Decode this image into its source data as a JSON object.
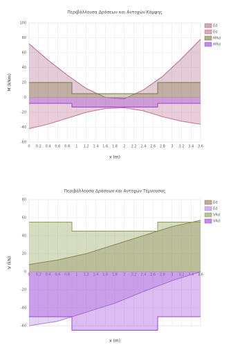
{
  "chart_data": [
    {
      "type": "area",
      "title": "Περιβάλλουσα Δράσεων και Αντοχών Κάμψης",
      "x_label": "x (m)",
      "y_label": "M (kNm)",
      "xlim": [
        0,
        3.6
      ],
      "xticks": [
        0,
        0.2,
        0.4,
        0.6,
        0.8,
        1,
        1.2,
        1.4,
        1.6,
        1.8,
        2,
        2.2,
        2.4,
        2.6,
        2.8,
        3,
        3.2,
        3.4,
        3.6
      ],
      "ylim": [
        -60,
        100
      ],
      "yticks": [
        -60,
        -40,
        -20,
        0,
        20,
        40,
        60,
        80,
        100
      ],
      "grid": true,
      "series": [
        {
          "name": "Ed",
          "color": "#b06a8c",
          "x": [
            0,
            0.4,
            0.8,
            1.2,
            1.6,
            2.0,
            2.4,
            2.8,
            3.2,
            3.6
          ],
          "values": [
            72,
            50,
            30,
            12,
            0,
            -2,
            10,
            28,
            52,
            78
          ]
        },
        {
          "name": "Ed",
          "color": "#c07090",
          "x": [
            0,
            0.4,
            0.8,
            1.2,
            1.6,
            2.0,
            2.4,
            2.8,
            3.2,
            3.6
          ],
          "values": [
            -42,
            -36,
            -28,
            -20,
            -15,
            -14,
            -18,
            -26,
            -32,
            -36
          ]
        },
        {
          "name": "MRd",
          "color": "#7a7a40",
          "x": [
            0,
            0.9,
            0.9,
            2.7,
            2.7,
            3.6
          ],
          "values": [
            20,
            20,
            5,
            5,
            20,
            20
          ]
        },
        {
          "name": "MRd",
          "color": "#9a40d8",
          "x": [
            0,
            0.9,
            0.9,
            2.7,
            2.7,
            3.6
          ],
          "values": [
            -8,
            -8,
            -13,
            -13,
            -8,
            -8
          ]
        }
      ]
    },
    {
      "type": "area",
      "title": "Περιβάλλουσα Δράσεων και Αντοχών Τέμνουσας",
      "x_label": "x (m)",
      "y_label": "V (kN)",
      "xlim": [
        0,
        3.6
      ],
      "xticks": [
        0,
        0.2,
        0.4,
        0.6,
        0.8,
        1,
        1.2,
        1.4,
        1.6,
        1.8,
        2,
        2.2,
        2.4,
        2.6,
        2.8,
        3,
        3.2,
        3.4,
        3.6
      ],
      "ylim": [
        -60,
        80
      ],
      "yticks": [
        -60,
        -40,
        -20,
        0,
        20,
        40,
        60,
        80
      ],
      "grid": true,
      "series": [
        {
          "name": "Ed",
          "color": "#8a7a50",
          "x": [
            0,
            0.6,
            1.2,
            1.8,
            2.4,
            3.0,
            3.6
          ],
          "values": [
            8,
            13,
            20,
            30,
            40,
            50,
            57
          ]
        },
        {
          "name": "Ed",
          "color": "#b080e0",
          "x": [
            0,
            0.6,
            1.2,
            1.8,
            2.4,
            3.0,
            3.6
          ],
          "values": [
            -60,
            -55,
            -45,
            -35,
            -22,
            -10,
            0
          ]
        },
        {
          "name": "VRd",
          "color": "#8a9a50",
          "x": [
            0,
            0.9,
            0.9,
            2.7,
            2.7,
            3.6
          ],
          "values": [
            55,
            55,
            45,
            45,
            55,
            55
          ]
        },
        {
          "name": "VRd",
          "color": "#9a40d8",
          "x": [
            0,
            0.9,
            0.9,
            2.7,
            2.7,
            3.6
          ],
          "values": [
            -50,
            -50,
            -65,
            -65,
            -50,
            -50
          ]
        }
      ]
    }
  ]
}
